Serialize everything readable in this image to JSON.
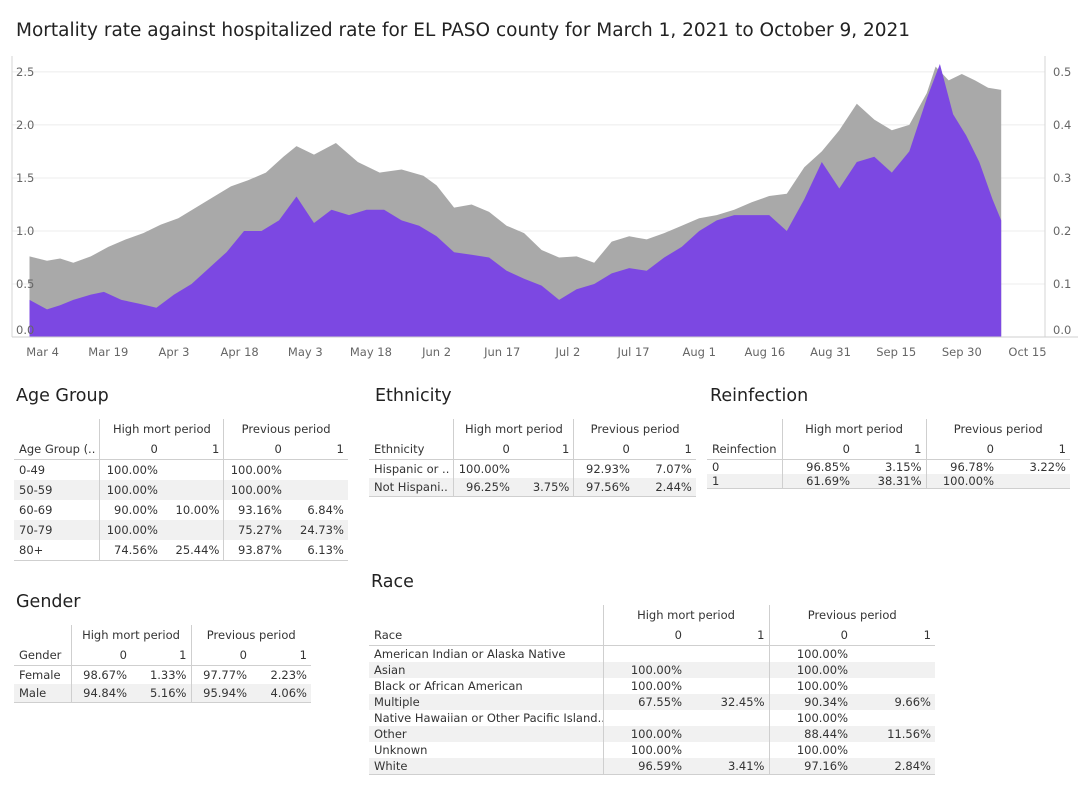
{
  "title": "Mortality rate against hospitalized rate for EL PASO county for March 1, 2021 to October 9, 2021",
  "chart_data": {
    "type": "area",
    "x_start": "2021-03-01",
    "x_end": "2021-10-09",
    "x_ticks": [
      "Mar 4",
      "Mar 19",
      "Apr 3",
      "Apr 18",
      "May 3",
      "May 18",
      "Jun 2",
      "Jun 17",
      "Jul 2",
      "Jul 17",
      "Aug 1",
      "Aug 16",
      "Aug 31",
      "Sep 15",
      "Sep 30",
      "Oct 15"
    ],
    "x_tick_dates": [
      "2021-03-04",
      "2021-03-19",
      "2021-04-03",
      "2021-04-18",
      "2021-05-03",
      "2021-05-18",
      "2021-06-02",
      "2021-06-17",
      "2021-07-02",
      "2021-07-17",
      "2021-08-01",
      "2021-08-16",
      "2021-08-31",
      "2021-09-15",
      "2021-09-30",
      "2021-10-15"
    ],
    "x_range": [
      "2021-02-25",
      "2021-10-19"
    ],
    "y_left": {
      "ylim": [
        0,
        2.65
      ],
      "ticks": [
        0,
        0.5,
        1.0,
        1.5,
        2.0,
        2.5
      ],
      "tick_labels": [
        "0.0",
        "0.5",
        "1.0",
        "1.5",
        "2.0",
        "2.5"
      ]
    },
    "y_right": {
      "ylim": [
        0,
        0.53
      ],
      "ticks": [
        0,
        0.1,
        0.2,
        0.3,
        0.4,
        0.5
      ],
      "tick_labels": [
        "0.0",
        "0.1",
        "0.2",
        "0.3",
        "0.4",
        "0.5"
      ]
    },
    "grid": true,
    "series": [
      {
        "color": "#a9a9a9",
        "axis": "left",
        "points": [
          [
            "2021-03-01",
            0.76
          ],
          [
            "2021-03-05",
            0.72
          ],
          [
            "2021-03-08",
            0.74
          ],
          [
            "2021-03-11",
            0.7
          ],
          [
            "2021-03-15",
            0.76
          ],
          [
            "2021-03-19",
            0.85
          ],
          [
            "2021-03-23",
            0.92
          ],
          [
            "2021-03-27",
            0.98
          ],
          [
            "2021-03-31",
            1.06
          ],
          [
            "2021-04-04",
            1.12
          ],
          [
            "2021-04-08",
            1.22
          ],
          [
            "2021-04-12",
            1.32
          ],
          [
            "2021-04-16",
            1.42
          ],
          [
            "2021-04-20",
            1.48
          ],
          [
            "2021-04-24",
            1.55
          ],
          [
            "2021-04-28",
            1.7
          ],
          [
            "2021-05-01",
            1.8
          ],
          [
            "2021-05-05",
            1.72
          ],
          [
            "2021-05-10",
            1.83
          ],
          [
            "2021-05-15",
            1.65
          ],
          [
            "2021-05-20",
            1.55
          ],
          [
            "2021-05-25",
            1.58
          ],
          [
            "2021-05-30",
            1.52
          ],
          [
            "2021-06-02",
            1.43
          ],
          [
            "2021-06-06",
            1.22
          ],
          [
            "2021-06-10",
            1.25
          ],
          [
            "2021-06-14",
            1.18
          ],
          [
            "2021-06-18",
            1.05
          ],
          [
            "2021-06-22",
            0.98
          ],
          [
            "2021-06-26",
            0.82
          ],
          [
            "2021-06-30",
            0.75
          ],
          [
            "2021-07-04",
            0.76
          ],
          [
            "2021-07-08",
            0.7
          ],
          [
            "2021-07-12",
            0.9
          ],
          [
            "2021-07-16",
            0.95
          ],
          [
            "2021-07-20",
            0.92
          ],
          [
            "2021-07-24",
            0.98
          ],
          [
            "2021-07-28",
            1.05
          ],
          [
            "2021-08-01",
            1.12
          ],
          [
            "2021-08-05",
            1.15
          ],
          [
            "2021-08-09",
            1.2
          ],
          [
            "2021-08-13",
            1.27
          ],
          [
            "2021-08-17",
            1.33
          ],
          [
            "2021-08-21",
            1.35
          ],
          [
            "2021-08-25",
            1.6
          ],
          [
            "2021-08-29",
            1.75
          ],
          [
            "2021-09-02",
            1.95
          ],
          [
            "2021-09-06",
            2.2
          ],
          [
            "2021-09-10",
            2.05
          ],
          [
            "2021-09-14",
            1.95
          ],
          [
            "2021-09-18",
            2.0
          ],
          [
            "2021-09-22",
            2.3
          ],
          [
            "2021-09-24",
            2.55
          ],
          [
            "2021-09-27",
            2.42
          ],
          [
            "2021-09-30",
            2.48
          ],
          [
            "2021-10-03",
            2.42
          ],
          [
            "2021-10-06",
            2.35
          ],
          [
            "2021-10-09",
            2.33
          ]
        ]
      },
      {
        "color": "#7b46e3",
        "axis": "right",
        "points": [
          [
            "2021-03-01",
            0.07
          ],
          [
            "2021-03-05",
            0.052
          ],
          [
            "2021-03-08",
            0.06
          ],
          [
            "2021-03-11",
            0.07
          ],
          [
            "2021-03-15",
            0.08
          ],
          [
            "2021-03-18",
            0.085
          ],
          [
            "2021-03-22",
            0.07
          ],
          [
            "2021-03-26",
            0.063
          ],
          [
            "2021-03-30",
            0.055
          ],
          [
            "2021-04-03",
            0.08
          ],
          [
            "2021-04-07",
            0.1
          ],
          [
            "2021-04-11",
            0.13
          ],
          [
            "2021-04-15",
            0.16
          ],
          [
            "2021-04-19",
            0.2
          ],
          [
            "2021-04-23",
            0.2
          ],
          [
            "2021-04-27",
            0.22
          ],
          [
            "2021-05-01",
            0.265
          ],
          [
            "2021-05-05",
            0.215
          ],
          [
            "2021-05-09",
            0.24
          ],
          [
            "2021-05-13",
            0.23
          ],
          [
            "2021-05-17",
            0.24
          ],
          [
            "2021-05-21",
            0.24
          ],
          [
            "2021-05-25",
            0.22
          ],
          [
            "2021-05-29",
            0.21
          ],
          [
            "2021-06-02",
            0.19
          ],
          [
            "2021-06-06",
            0.16
          ],
          [
            "2021-06-10",
            0.155
          ],
          [
            "2021-06-14",
            0.15
          ],
          [
            "2021-06-18",
            0.125
          ],
          [
            "2021-06-22",
            0.11
          ],
          [
            "2021-06-26",
            0.097
          ],
          [
            "2021-06-30",
            0.07
          ],
          [
            "2021-07-04",
            0.09
          ],
          [
            "2021-07-08",
            0.1
          ],
          [
            "2021-07-12",
            0.12
          ],
          [
            "2021-07-16",
            0.13
          ],
          [
            "2021-07-20",
            0.125
          ],
          [
            "2021-07-24",
            0.15
          ],
          [
            "2021-07-28",
            0.17
          ],
          [
            "2021-08-01",
            0.2
          ],
          [
            "2021-08-05",
            0.22
          ],
          [
            "2021-08-09",
            0.23
          ],
          [
            "2021-08-13",
            0.23
          ],
          [
            "2021-08-17",
            0.23
          ],
          [
            "2021-08-21",
            0.2
          ],
          [
            "2021-08-25",
            0.26
          ],
          [
            "2021-08-29",
            0.33
          ],
          [
            "2021-09-02",
            0.28
          ],
          [
            "2021-09-06",
            0.33
          ],
          [
            "2021-09-10",
            0.34
          ],
          [
            "2021-09-14",
            0.31
          ],
          [
            "2021-09-18",
            0.35
          ],
          [
            "2021-09-22",
            0.45
          ],
          [
            "2021-09-25",
            0.515
          ],
          [
            "2021-09-28",
            0.42
          ],
          [
            "2021-10-01",
            0.38
          ],
          [
            "2021-10-04",
            0.33
          ],
          [
            "2021-10-07",
            0.26
          ],
          [
            "2021-10-09",
            0.22
          ]
        ]
      }
    ]
  },
  "tables": {
    "age": {
      "title": "Age Group",
      "group_headers": [
        "High mort period",
        "Previous period"
      ],
      "sub_headers": [
        "0",
        "1",
        "0",
        "1"
      ],
      "row_header": "Age Group (..",
      "rows": [
        {
          "label": "0-49",
          "v": [
            "100.00%",
            "",
            "100.00%",
            ""
          ]
        },
        {
          "label": "50-59",
          "v": [
            "100.00%",
            "",
            "100.00%",
            ""
          ]
        },
        {
          "label": "60-69",
          "v": [
            "90.00%",
            "10.00%",
            "93.16%",
            "6.84%"
          ]
        },
        {
          "label": "70-79",
          "v": [
            "100.00%",
            "",
            "75.27%",
            "24.73%"
          ]
        },
        {
          "label": "80+",
          "v": [
            "74.56%",
            "25.44%",
            "93.87%",
            "6.13%"
          ]
        }
      ]
    },
    "ethnicity": {
      "title": "Ethnicity",
      "group_headers": [
        "High mort period",
        "Previous period"
      ],
      "sub_headers": [
        "0",
        "1",
        "0",
        "1"
      ],
      "row_header": "Ethnicity",
      "rows": [
        {
          "label": "Hispanic or ..",
          "v": [
            "100.00%",
            "",
            "92.93%",
            "7.07%"
          ]
        },
        {
          "label": "Not Hispani..",
          "v": [
            "96.25%",
            "3.75%",
            "97.56%",
            "2.44%"
          ]
        }
      ]
    },
    "reinfection": {
      "title": "Reinfection",
      "group_headers": [
        "High mort period",
        "Previous period"
      ],
      "sub_headers": [
        "0",
        "1",
        "0",
        "1"
      ],
      "row_header": "Reinfection",
      "rows": [
        {
          "label": "0",
          "v": [
            "96.85%",
            "3.15%",
            "96.78%",
            "3.22%"
          ]
        },
        {
          "label": "1",
          "v": [
            "61.69%",
            "38.31%",
            "100.00%",
            ""
          ]
        }
      ]
    },
    "gender": {
      "title": "Gender",
      "group_headers": [
        "High mort period",
        "Previous period"
      ],
      "sub_headers": [
        "0",
        "1",
        "0",
        "1"
      ],
      "row_header": "Gender",
      "rows": [
        {
          "label": "Female",
          "v": [
            "98.67%",
            "1.33%",
            "97.77%",
            "2.23%"
          ]
        },
        {
          "label": "Male",
          "v": [
            "94.84%",
            "5.16%",
            "95.94%",
            "4.06%"
          ]
        }
      ]
    },
    "race": {
      "title": "Race",
      "group_headers": [
        "High mort period",
        "Previous period"
      ],
      "sub_headers": [
        "0",
        "1",
        "0",
        "1"
      ],
      "row_header": "Race",
      "rows": [
        {
          "label": "American Indian or Alaska Native",
          "v": [
            "",
            "",
            "100.00%",
            ""
          ]
        },
        {
          "label": "Asian",
          "v": [
            "100.00%",
            "",
            "100.00%",
            ""
          ]
        },
        {
          "label": "Black or African American",
          "v": [
            "100.00%",
            "",
            "100.00%",
            ""
          ]
        },
        {
          "label": "Multiple",
          "v": [
            "67.55%",
            "32.45%",
            "90.34%",
            "9.66%"
          ]
        },
        {
          "label": "Native Hawaiian or Other Pacific Island..",
          "v": [
            "",
            "",
            "100.00%",
            ""
          ]
        },
        {
          "label": "Other",
          "v": [
            "100.00%",
            "",
            "88.44%",
            "11.56%"
          ]
        },
        {
          "label": "Unknown",
          "v": [
            "100.00%",
            "",
            "100.00%",
            ""
          ]
        },
        {
          "label": "White",
          "v": [
            "96.59%",
            "3.41%",
            "97.16%",
            "2.84%"
          ]
        }
      ]
    }
  }
}
